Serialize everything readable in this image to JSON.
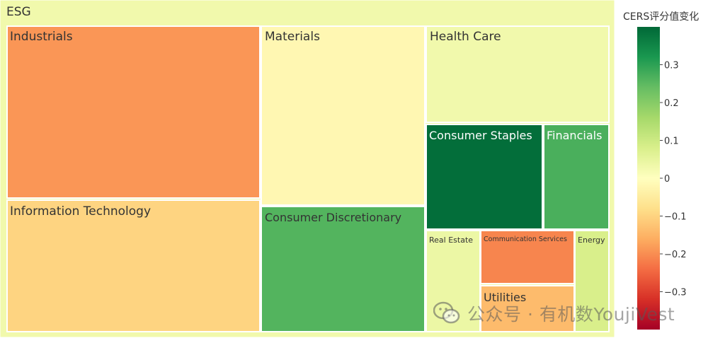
{
  "chart_data": {
    "type": "treemap",
    "root": {
      "label": "ESG",
      "value": 0.03
    },
    "nodes": [
      {
        "label": "Industrials",
        "value": -0.19
      },
      {
        "label": "Materials",
        "value": -0.02
      },
      {
        "label": "Health Care",
        "value": 0.03
      },
      {
        "label": "Information Technology",
        "value": -0.1
      },
      {
        "label": "Consumer Discretionary",
        "value": 0.26
      },
      {
        "label": "Consumer Staples",
        "value": 0.39
      },
      {
        "label": "Financials",
        "value": 0.27
      },
      {
        "label": "Real Estate",
        "value": 0.04
      },
      {
        "label": "Communication Services",
        "value": -0.21
      },
      {
        "label": "Energy",
        "value": 0.08
      },
      {
        "label": "Utilities",
        "value": -0.14
      }
    ],
    "colorbar": {
      "title": "CERS评分值变化",
      "range": [
        -0.4,
        0.4
      ],
      "ticks": [
        0.3,
        0.2,
        0.1,
        0,
        -0.1,
        -0.2,
        -0.3
      ],
      "tick_labels": [
        "0.3",
        "0.2",
        "0.1",
        "0",
        "−0.1",
        "−0.2",
        "−0.3"
      ],
      "colorscale": [
        "#a50026",
        "#d73027",
        "#f46d43",
        "#fdae61",
        "#fee08b",
        "#ffffbf",
        "#d9ef8b",
        "#a6d96a",
        "#66bd63",
        "#1a9850",
        "#006837"
      ]
    }
  },
  "watermark": {
    "text": "公众号 · 有机数YoujiVest",
    "icon": "wechat-icon"
  }
}
